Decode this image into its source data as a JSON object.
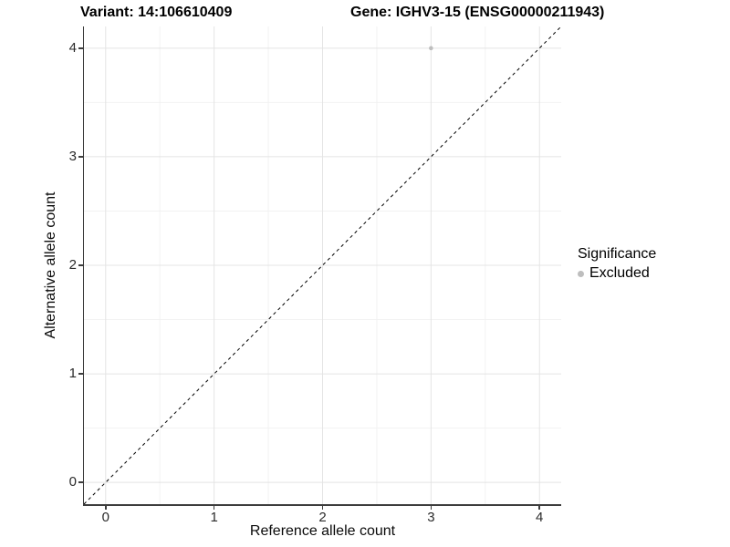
{
  "titles": {
    "variant": "Variant: 14:106610409",
    "gene": "Gene: IGHV3-15 (ENSG00000211943)"
  },
  "chart_data": {
    "type": "scatter",
    "xlabel": "Reference allele count",
    "ylabel": "Alternative allele count",
    "xlim": [
      -0.2,
      4.2
    ],
    "ylim": [
      -0.2,
      4.2
    ],
    "x_ticks": [
      0,
      1,
      2,
      3,
      4
    ],
    "y_ticks": [
      0,
      1,
      2,
      3,
      4
    ],
    "x_minor": [
      0.5,
      1.5,
      2.5,
      3.5
    ],
    "y_minor": [
      0.5,
      1.5,
      2.5,
      3.5
    ],
    "grid": "major+minor on white background",
    "points": [
      {
        "x": 3,
        "y": 4,
        "series": "Excluded"
      }
    ],
    "abline": {
      "slope": 1,
      "intercept": 0,
      "style": "dashed",
      "color": "#000000"
    },
    "legend": {
      "title": "Significance",
      "position": "right",
      "entries": [
        {
          "label": "Excluded",
          "color": "#bebebe"
        }
      ]
    },
    "colors": {
      "point": "#bebebe",
      "grid_major": "#e4e4e4",
      "grid_minor": "#f2f2f2",
      "axis_line": "#3d3d3d",
      "tick_label": "#2b2b2b"
    }
  }
}
